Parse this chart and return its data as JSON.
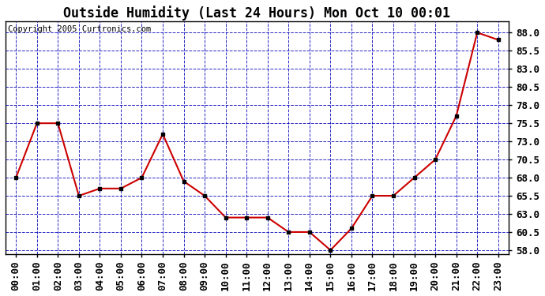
{
  "title": "Outside Humidity (Last 24 Hours) Mon Oct 10 00:01",
  "copyright": "Copyright 2005 Curtronics.com",
  "x_labels": [
    "00:00",
    "01:00",
    "02:00",
    "03:00",
    "04:00",
    "05:00",
    "06:00",
    "07:00",
    "08:00",
    "09:00",
    "10:00",
    "11:00",
    "12:00",
    "13:00",
    "14:00",
    "15:00",
    "16:00",
    "17:00",
    "18:00",
    "19:00",
    "20:00",
    "21:00",
    "22:00",
    "23:00"
  ],
  "y_values": [
    68.0,
    75.5,
    75.5,
    65.5,
    66.5,
    66.5,
    68.0,
    74.0,
    67.5,
    65.5,
    62.5,
    62.5,
    62.5,
    60.5,
    60.5,
    58.0,
    61.0,
    65.5,
    65.5,
    68.0,
    70.5,
    76.5,
    88.0,
    87.0
  ],
  "ylim": [
    57.5,
    89.5
  ],
  "yticks": [
    58.0,
    60.5,
    63.0,
    65.5,
    68.0,
    70.5,
    73.0,
    75.5,
    78.0,
    80.5,
    83.0,
    85.5,
    88.0
  ],
  "line_color": "#cc0000",
  "marker_color": "#000000",
  "bg_color": "#ffffff",
  "plot_bg_color": "#ffffff",
  "grid_color": "#0000bb",
  "title_color": "#000000",
  "title_fontsize": 12,
  "copyright_fontsize": 7.5,
  "tick_fontsize": 9,
  "figsize": [
    6.9,
    3.75
  ],
  "dpi": 100
}
